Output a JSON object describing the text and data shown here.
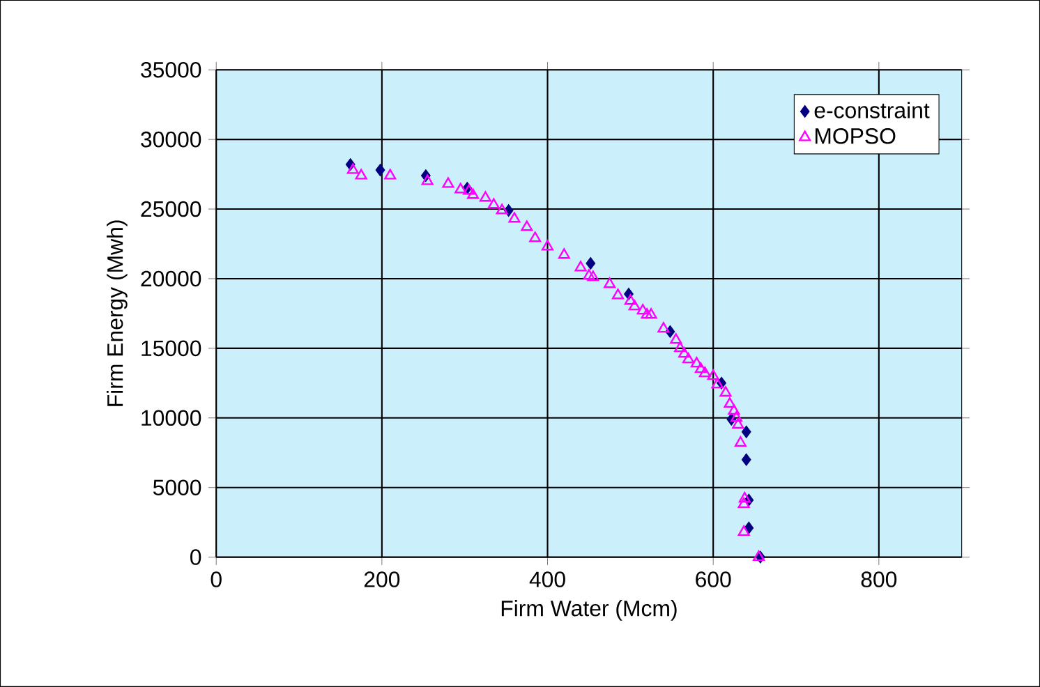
{
  "chart_data": {
    "type": "scatter",
    "xlabel": "Firm Water (Mcm)",
    "ylabel": "Firm Energy (Mwh)",
    "xlim": [
      0,
      900
    ],
    "ylim": [
      0,
      35000
    ],
    "xticks": [
      0,
      200,
      400,
      600,
      800
    ],
    "yticks": [
      0,
      5000,
      10000,
      15000,
      20000,
      25000,
      30000,
      35000
    ],
    "grid": true,
    "legend": "top right",
    "series": [
      {
        "name": "e-constraint",
        "color": "#000080",
        "marker": "diamond",
        "x": [
          162,
          198,
          253,
          303,
          353,
          452,
          498,
          548,
          610,
          622,
          640,
          640,
          643,
          643,
          657
        ],
        "values": [
          28200,
          27800,
          27400,
          26500,
          24900,
          21100,
          18900,
          16200,
          12500,
          9900,
          9000,
          7000,
          4100,
          2100,
          0
        ]
      },
      {
        "name": "MOPSO",
        "color": "#ff00ff",
        "marker": "triangle",
        "x": [
          165,
          175,
          210,
          255,
          280,
          295,
          305,
          310,
          325,
          335,
          345,
          360,
          375,
          385,
          400,
          420,
          440,
          450,
          455,
          475,
          485,
          500,
          505,
          515,
          520,
          525,
          540,
          555,
          560,
          565,
          570,
          580,
          585,
          590,
          600,
          605,
          615,
          620,
          625,
          628,
          630,
          633,
          638,
          637,
          637,
          655
        ],
        "values": [
          27800,
          27400,
          27400,
          27000,
          26800,
          26400,
          26300,
          26000,
          25800,
          25300,
          24900,
          24300,
          23700,
          22900,
          22300,
          21700,
          20800,
          20200,
          20100,
          19600,
          18800,
          18400,
          18000,
          17700,
          17400,
          17400,
          16400,
          15600,
          15000,
          14600,
          14200,
          13900,
          13500,
          13200,
          13000,
          12400,
          11800,
          11000,
          10500,
          10000,
          9500,
          8200,
          4200,
          3800,
          1800,
          0
        ]
      }
    ]
  }
}
